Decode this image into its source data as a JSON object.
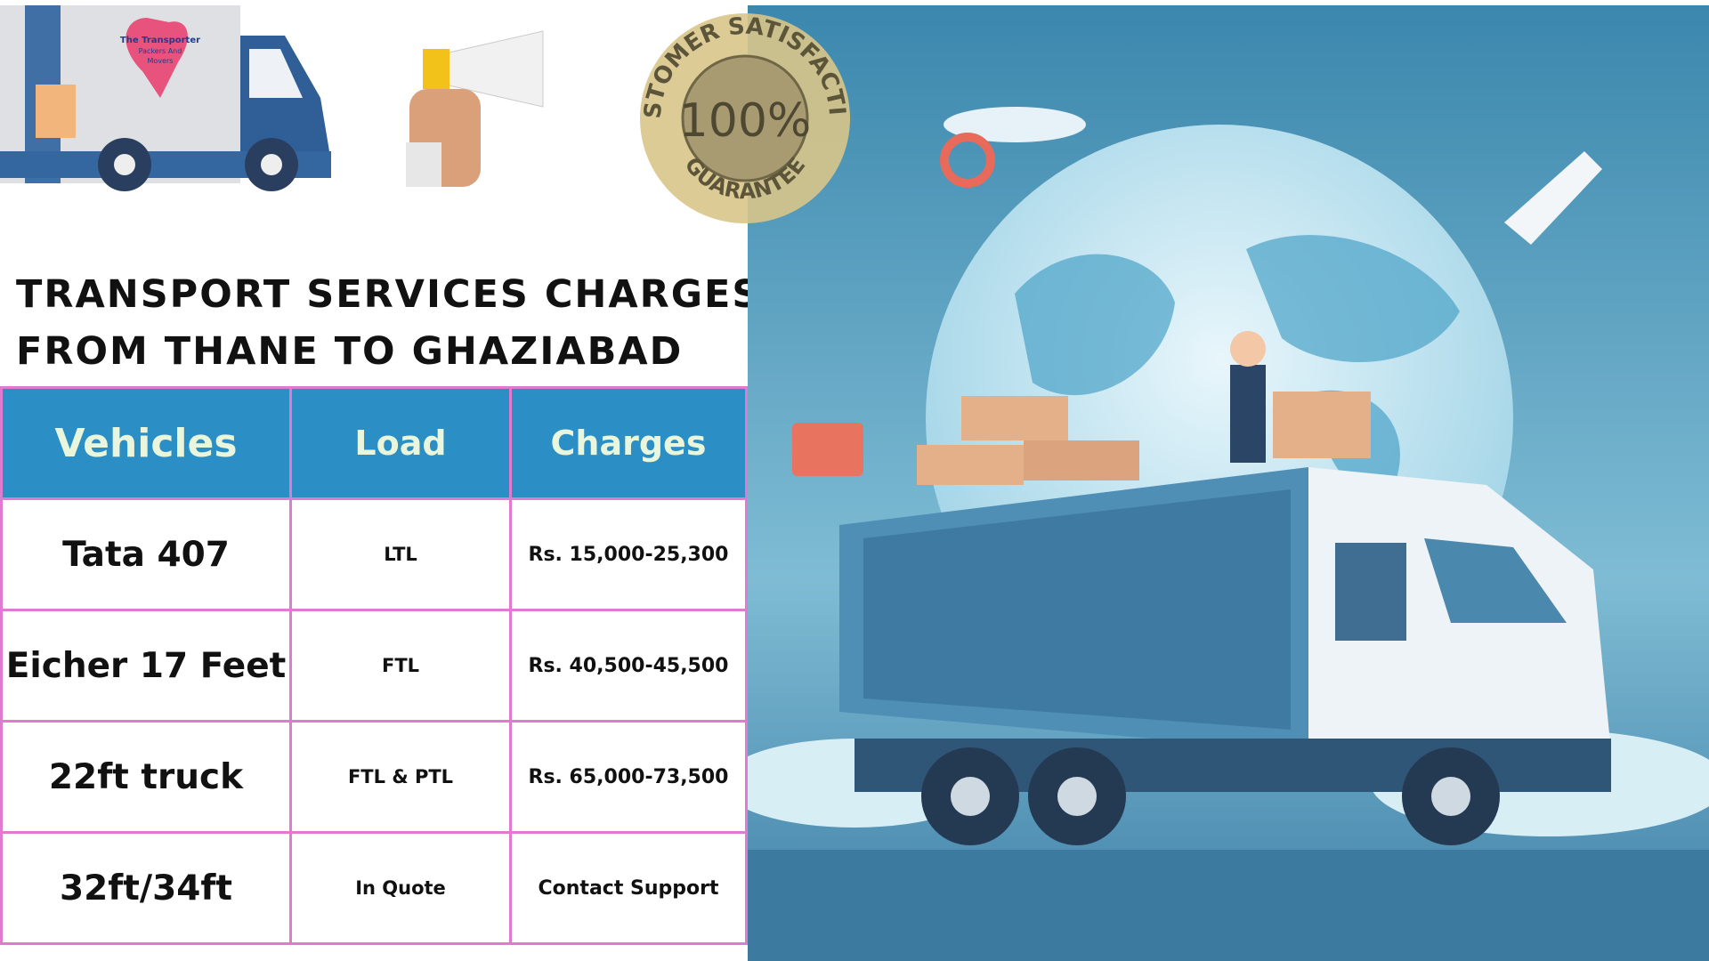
{
  "logo": {
    "lines": [
      "The Transporter",
      "Packers And",
      "Movers"
    ]
  },
  "badge": {
    "top": "CUSTOMER SATISFACTION",
    "center": "100%",
    "bottom": "GUARANTEE"
  },
  "title": [
    "TRANSPORT SERVICES CHARGES",
    "FROM THANE TO GHAZIABAD"
  ],
  "table": {
    "header": [
      "Vehicles",
      "Load",
      "Charges"
    ],
    "rows": [
      [
        "Tata 407",
        "LTL",
        "Rs. 15,000-25,300"
      ],
      [
        "Eicher 17 Feet",
        "FTL",
        "Rs. 40,500-45,500"
      ],
      [
        "22ft truck",
        "FTL & PTL",
        "Rs. 65,000-73,500"
      ],
      [
        "32ft/34ft",
        "In Quote",
        "Contact Support"
      ]
    ]
  }
}
